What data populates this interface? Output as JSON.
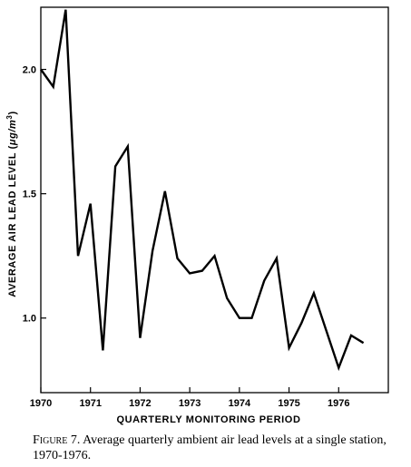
{
  "chart_data": {
    "type": "line",
    "title": "",
    "xlabel": "QUARTERLY MONITORING PERIOD",
    "ylabel_parts": [
      "AVERAGE AIR LEAD LEVEL (",
      "μg/m",
      "3",
      ")"
    ],
    "xlim": [
      1970,
      1977
    ],
    "ylim": [
      0.7,
      2.25
    ],
    "x_ticks": [
      "1970",
      "1971",
      "1972",
      "1973",
      "1974",
      "1975",
      "1976"
    ],
    "y_ticks": [
      "1.0",
      "1.5",
      "2.0"
    ],
    "series": [
      {
        "x": [
          1970.0,
          1970.25,
          1970.5,
          1970.75,
          1971.0,
          1971.25,
          1971.5,
          1971.75,
          1972.0,
          1972.25,
          1972.5,
          1972.75,
          1973.0,
          1973.25,
          1973.5,
          1973.75,
          1974.0,
          1974.25,
          1974.5,
          1974.75,
          1975.0,
          1975.25,
          1975.5,
          1975.75,
          1976.0,
          1976.25,
          1976.5
        ],
        "values": [
          2.0,
          1.93,
          2.24,
          1.25,
          1.46,
          0.87,
          1.61,
          1.69,
          0.92,
          1.27,
          1.51,
          1.24,
          1.18,
          1.19,
          1.25,
          1.08,
          1.0,
          1.0,
          1.15,
          1.24,
          0.88,
          0.98,
          1.1,
          0.95,
          0.8,
          0.93,
          0.9
        ]
      }
    ],
    "grid": false,
    "line_color": "#000000"
  },
  "caption": {
    "label": "Figure 7.",
    "text": " Average quarterly ambient air lead levels at a single station, 1970-1976."
  }
}
